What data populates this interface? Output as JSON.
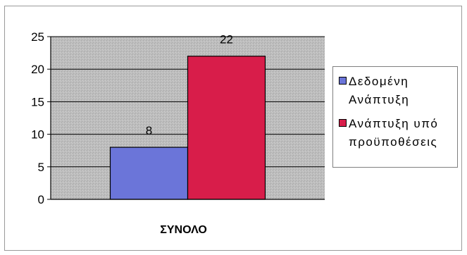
{
  "chart_data": {
    "type": "bar",
    "title": "",
    "xlabel": "",
    "ylabel": "",
    "categories": [
      "ΣΥΝΟΛΟ"
    ],
    "series": [
      {
        "name": "Δεδομένη Ανάπτυξη",
        "values": [
          8
        ],
        "color": "#6b75d9"
      },
      {
        "name": "Ανάπτυξη υπό προϋποθέσεις",
        "values": [
          22
        ],
        "color": "#d81d4a"
      }
    ],
    "ylim": [
      0,
      25
    ],
    "yticks": [
      "0",
      "5",
      "10",
      "15",
      "20",
      "25"
    ],
    "data_labels": [
      "8",
      "22"
    ],
    "grid": true,
    "legend_position": "right",
    "plot_background": "#bdbdbd"
  },
  "legend": {
    "items": [
      {
        "label": "Δεδομένη Ανάπτυξη",
        "color": "#6b75d9"
      },
      {
        "label": "Ανάπτυξη υπό προϋποθέσεις",
        "color": "#d81d4a"
      }
    ]
  }
}
